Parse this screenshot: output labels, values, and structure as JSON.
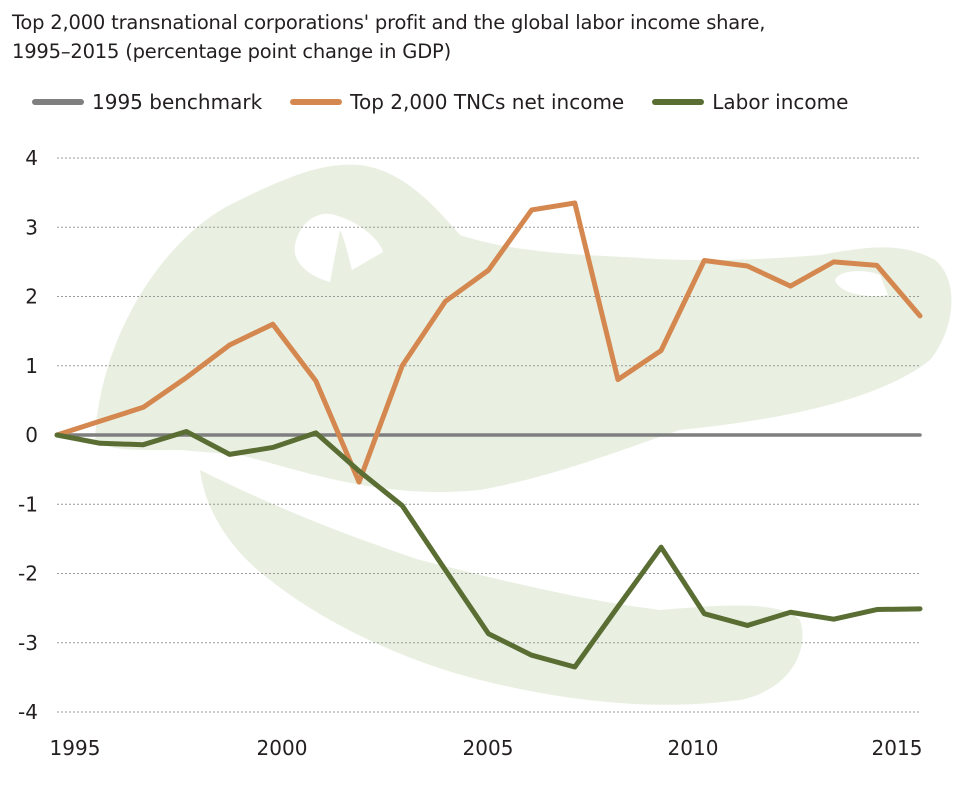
{
  "chart_data": {
    "type": "line",
    "title": "Top 2,000 transnational corporations' profit and the global labor income share, 1995–2015 (percentage point change in GDP)",
    "title_lines": [
      "Top 2,000 transnational corporations' profit and the global labor income share,",
      "1995–2015 (percentage point change in GDP)"
    ],
    "xlabel": "",
    "ylabel": "",
    "x": [
      1995,
      1996,
      1997,
      1998,
      1999,
      2000,
      2001,
      2002,
      2003,
      2004,
      2005,
      2006,
      2007,
      2008,
      2009,
      2010,
      2011,
      2012,
      2013,
      2014,
      2015
    ],
    "xlim": [
      1995,
      2015
    ],
    "ylim": [
      -4,
      4
    ],
    "x_ticks": [
      "1995",
      "2000",
      "2005",
      "2010",
      "2015"
    ],
    "y_ticks": [
      "4",
      "3",
      "2",
      "1",
      "0",
      "-1",
      "-2",
      "-3",
      "-4"
    ],
    "grid": "horizontal dotted",
    "legend_position": "top",
    "series": [
      {
        "name": "1995 benchmark",
        "color": "#7f7f7f",
        "values": [
          0,
          0,
          0,
          0,
          0,
          0,
          0,
          0,
          0,
          0,
          0,
          0,
          0,
          0,
          0,
          0,
          0,
          0,
          0,
          0,
          0
        ]
      },
      {
        "name": "Top 2,000 TNCs net income",
        "color": "#d4884f",
        "values": [
          0,
          0.2,
          0.4,
          0.83,
          1.3,
          1.6,
          0.78,
          -0.68,
          1.0,
          1.93,
          2.38,
          3.25,
          3.35,
          0.8,
          1.22,
          2.52,
          2.44,
          2.15,
          2.5,
          2.45,
          1.72
        ]
      },
      {
        "name": "Labor income",
        "color": "#5a6e34",
        "values": [
          0,
          -0.12,
          -0.14,
          0.05,
          -0.28,
          -0.18,
          0.03,
          -0.52,
          -1.02,
          -1.95,
          -2.87,
          -3.18,
          -3.35,
          -2.48,
          -1.62,
          -2.58,
          -2.75,
          -2.56,
          -2.66,
          -2.52,
          -2.51
        ]
      }
    ],
    "background_illustration": "crocodile-silhouette",
    "background_color": "#e9f0e2"
  }
}
